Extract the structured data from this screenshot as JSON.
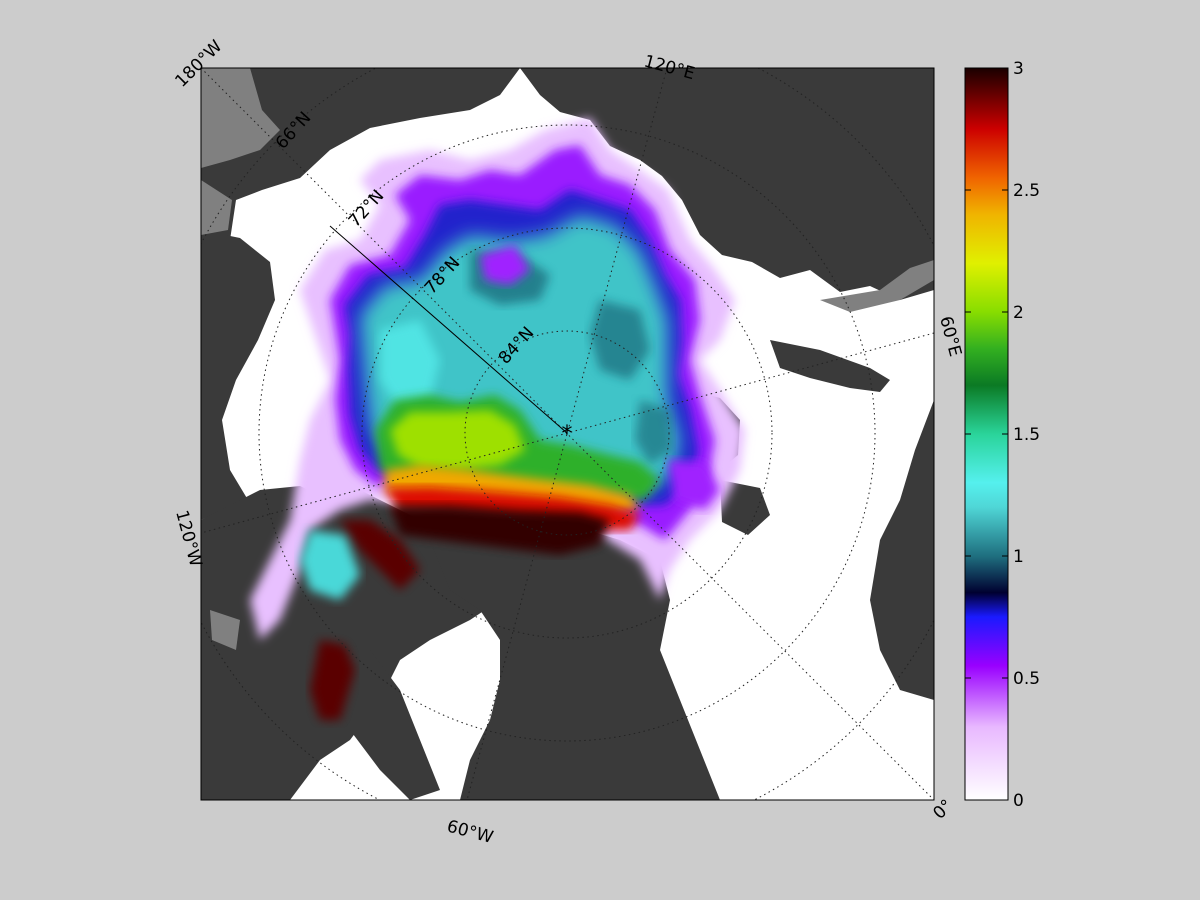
{
  "map": {
    "projection": "north polar stereographic",
    "pole_marker": "*",
    "graticule_style": "dotted",
    "longitude_labels": [
      {
        "id": "lon-180w",
        "text": "180°W"
      },
      {
        "id": "lon-120e",
        "text": "120°E"
      },
      {
        "id": "lon-60e",
        "text": "60°E"
      },
      {
        "id": "lon-0",
        "text": "0°"
      },
      {
        "id": "lon-60w",
        "text": "60°W"
      },
      {
        "id": "lon-120w",
        "text": "120°W"
      }
    ],
    "latitude_labels": [
      {
        "id": "lat-66n",
        "text": "66°N"
      },
      {
        "id": "lat-72n",
        "text": "72°N"
      },
      {
        "id": "lat-78n",
        "text": "78°N"
      },
      {
        "id": "lat-84n",
        "text": "84°N"
      }
    ],
    "colors": {
      "figure_background": "#cccccc",
      "ocean_open_water": "#ffffff",
      "land": "#3a3a3a",
      "land_no_data": "#808080"
    }
  },
  "colorbar": {
    "min": 0,
    "max": 3,
    "ticks": [
      "0",
      "0.5",
      "1",
      "1.5",
      "2",
      "2.5",
      "3"
    ],
    "colormap": [
      {
        "value": 0.0,
        "color": "#ffffff"
      },
      {
        "value": 0.3,
        "color": "#e8b8ff"
      },
      {
        "value": 0.55,
        "color": "#9900ff"
      },
      {
        "value": 0.75,
        "color": "#1a1aff"
      },
      {
        "value": 0.85,
        "color": "#000030"
      },
      {
        "value": 1.0,
        "color": "#1f6f7f"
      },
      {
        "value": 1.2,
        "color": "#4fd6d6"
      },
      {
        "value": 1.3,
        "color": "#55f0ee"
      },
      {
        "value": 1.5,
        "color": "#2ad49a"
      },
      {
        "value": 1.7,
        "color": "#0b7a24"
      },
      {
        "value": 1.85,
        "color": "#33b020"
      },
      {
        "value": 2.0,
        "color": "#88dd00"
      },
      {
        "value": 2.2,
        "color": "#e0f000"
      },
      {
        "value": 2.4,
        "color": "#f0b400"
      },
      {
        "value": 2.55,
        "color": "#f06400"
      },
      {
        "value": 2.75,
        "color": "#cc0000"
      },
      {
        "value": 2.9,
        "color": "#600000"
      },
      {
        "value": 3.0,
        "color": "#1a0000"
      }
    ]
  }
}
